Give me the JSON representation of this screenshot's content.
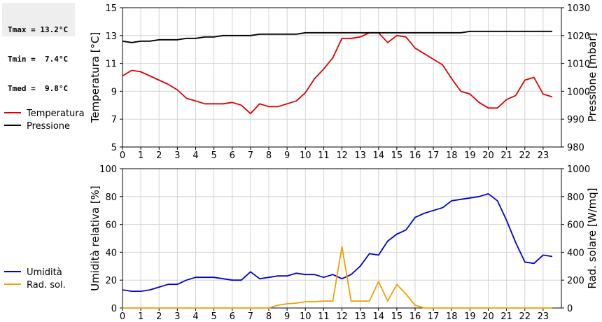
{
  "stats": {
    "tmax": "Tmax = 13.2°C",
    "tmin": "Tmin =  7.4°C",
    "tmed": "Tmed =  9.8°C"
  },
  "chart_data": [
    {
      "type": "line",
      "title": "",
      "x": [
        0,
        0.5,
        1,
        1.5,
        2,
        2.5,
        3,
        3.5,
        4,
        4.5,
        5,
        5.5,
        6,
        6.5,
        7,
        7.5,
        8,
        8.5,
        9,
        9.5,
        10,
        10.5,
        11,
        11.5,
        12,
        12.5,
        13,
        13.5,
        14,
        14.5,
        15,
        15.5,
        16,
        16.5,
        17,
        17.5,
        18,
        18.5,
        19,
        19.5,
        20,
        20.5,
        21,
        21.5,
        22,
        22.5,
        23,
        23.5
      ],
      "xticks": [
        "0",
        "1",
        "2",
        "3",
        "4",
        "5",
        "6",
        "7",
        "8",
        "9",
        "10",
        "11",
        "12",
        "13",
        "14",
        "15",
        "16",
        "17",
        "18",
        "19",
        "20",
        "21",
        "22",
        "23"
      ],
      "xlim": [
        0,
        24
      ],
      "ylabel": "Temperatura [°C]",
      "ylim": [
        5,
        15
      ],
      "yticks": [
        "5",
        "7",
        "9",
        "11",
        "13",
        "15"
      ],
      "y2label": "Pressione [mbar]",
      "y2lim": [
        980,
        1030
      ],
      "y2ticks": [
        "980",
        "990",
        "1000",
        "1010",
        "1020",
        "1030"
      ],
      "grid": true,
      "legend_placement": "left",
      "series": [
        {
          "name": "Temperatura",
          "color": "#dd0000",
          "axis": "left",
          "values": [
            10.1,
            10.5,
            10.4,
            10.1,
            9.8,
            9.5,
            9.1,
            8.5,
            8.3,
            8.1,
            8.1,
            8.1,
            8.2,
            8.0,
            7.4,
            8.1,
            7.9,
            7.9,
            8.1,
            8.3,
            8.9,
            9.9,
            10.6,
            11.4,
            12.8,
            12.8,
            12.9,
            13.2,
            13.2,
            12.5,
            13.0,
            12.9,
            12.1,
            11.7,
            11.3,
            10.9,
            9.9,
            9.0,
            8.8,
            8.2,
            7.8,
            7.8,
            8.4,
            8.7,
            9.8,
            10.0,
            8.8,
            8.6
          ]
        },
        {
          "name": "Pressione",
          "color": "#000000",
          "axis": "right",
          "values": [
            1018,
            1017.5,
            1018,
            1018,
            1018.5,
            1018.5,
            1018.5,
            1019,
            1019,
            1019.5,
            1019.5,
            1020,
            1020,
            1020,
            1020,
            1020.5,
            1020.5,
            1020.5,
            1020.5,
            1020.5,
            1021,
            1021,
            1021,
            1021,
            1021,
            1021,
            1021,
            1021,
            1021,
            1021,
            1021,
            1021,
            1021,
            1021,
            1021,
            1021,
            1021,
            1021,
            1021.5,
            1021.5,
            1021.5,
            1021.5,
            1021.5,
            1021.5,
            1021.5,
            1021.5,
            1021.5,
            1021.5
          ]
        }
      ]
    },
    {
      "type": "line",
      "title": "",
      "x": [
        0,
        0.5,
        1,
        1.5,
        2,
        2.5,
        3,
        3.5,
        4,
        4.5,
        5,
        5.5,
        6,
        6.5,
        7,
        7.5,
        8,
        8.5,
        9,
        9.5,
        10,
        10.5,
        11,
        11.5,
        12,
        12.5,
        13,
        13.5,
        14,
        14.5,
        15,
        15.5,
        16,
        16.5,
        17,
        17.5,
        18,
        18.5,
        19,
        19.5,
        20,
        20.5,
        21,
        21.5,
        22,
        22.5,
        23,
        23.5
      ],
      "xticks": [
        "0",
        "1",
        "2",
        "3",
        "4",
        "5",
        "6",
        "7",
        "8",
        "9",
        "10",
        "11",
        "12",
        "13",
        "14",
        "15",
        "16",
        "17",
        "18",
        "19",
        "20",
        "21",
        "22",
        "23"
      ],
      "xlim": [
        0,
        24
      ],
      "ylabel": "Umidità relativa [%]",
      "ylim": [
        0,
        100
      ],
      "yticks": [
        "0",
        "20",
        "40",
        "60",
        "80",
        "100"
      ],
      "y2label": "Rad. solare [W/mq]",
      "y2lim": [
        0,
        1000
      ],
      "y2ticks": [
        "0",
        "200",
        "400",
        "600",
        "800",
        "1000"
      ],
      "grid": true,
      "legend_placement": "left",
      "series": [
        {
          "name": "Umidità",
          "color": "#0000cc",
          "axis": "left",
          "values": [
            13,
            12,
            12,
            13,
            15,
            17,
            17,
            20,
            22,
            22,
            22,
            21,
            20,
            20,
            26,
            21,
            22,
            23,
            23,
            25,
            24,
            24,
            22,
            24,
            21,
            24,
            30,
            39,
            38,
            48,
            53,
            56,
            65,
            68,
            70,
            72,
            77,
            78,
            79,
            80,
            82,
            77,
            63,
            47,
            33,
            32,
            38,
            37
          ]
        },
        {
          "name": "Rad. sol.",
          "color": "#f0a000",
          "axis": "right",
          "values": [
            0,
            0,
            0,
            0,
            0,
            0,
            0,
            0,
            0,
            0,
            0,
            0,
            0,
            0,
            0,
            0,
            0,
            20,
            30,
            35,
            45,
            45,
            50,
            50,
            440,
            50,
            50,
            50,
            190,
            50,
            170,
            100,
            20,
            0,
            0,
            0,
            0,
            0,
            0,
            0,
            0,
            0,
            0,
            0,
            0,
            0,
            0,
            0
          ]
        }
      ]
    }
  ]
}
